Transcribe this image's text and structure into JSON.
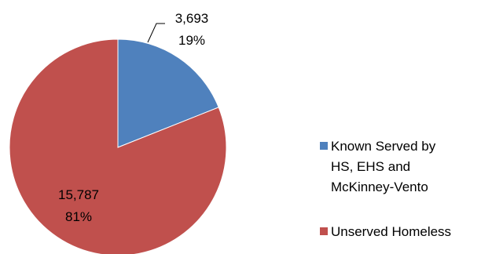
{
  "chart_data": {
    "type": "pie",
    "title": "",
    "slices": [
      {
        "name": "Known Served by HS, EHS and McKinney-Vento",
        "legend_lines": [
          "Known Served by",
          "HS, EHS and",
          "McKinney-Vento"
        ],
        "value": 3693,
        "value_label": "3,693",
        "percent_label": "19%",
        "color": "#4f81bd"
      },
      {
        "name": "Unserved Homeless",
        "legend_lines": [
          "Unserved Homeless"
        ],
        "value": 15787,
        "value_label": "15,787",
        "percent_label": "81%",
        "color": "#c0504d"
      }
    ],
    "legend_position": "right",
    "slice_edge_color": "#ffffff"
  }
}
